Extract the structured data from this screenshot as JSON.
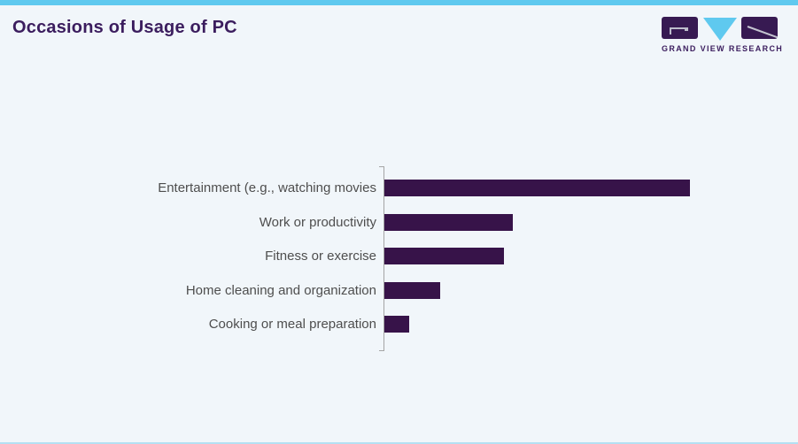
{
  "page": {
    "title": "Occasions of Usage of PC",
    "colors": {
      "background": "#f1f6fa",
      "accent_cyan": "#5fc9ef",
      "title_purple": "#3b1d5e",
      "bar_purple": "#371349",
      "label_gray": "#4e4e4e",
      "axis_gray": "#a5a5a5"
    }
  },
  "logo": {
    "text": "GRAND VIEW RESEARCH",
    "icons": [
      "logo-g-block",
      "logo-v-triangle",
      "logo-r-block"
    ]
  },
  "chart_data": {
    "type": "bar",
    "orientation": "horizontal",
    "title": "Occasions of Usage of PC",
    "categories": [
      "Entertainment (e.g., watching movies",
      "Work or productivity",
      "Fitness or exercise",
      "Home cleaning and organization",
      "Cooking or meal preparation"
    ],
    "values": [
      69,
      29,
      27,
      12.5,
      5.5
    ],
    "xlim": [
      0,
      85
    ],
    "xlabel": "",
    "ylabel": "",
    "grid": false,
    "legend": false,
    "value_labels_shown": false,
    "bar_color": "#371349",
    "axis_color": "#a5a5a5"
  }
}
